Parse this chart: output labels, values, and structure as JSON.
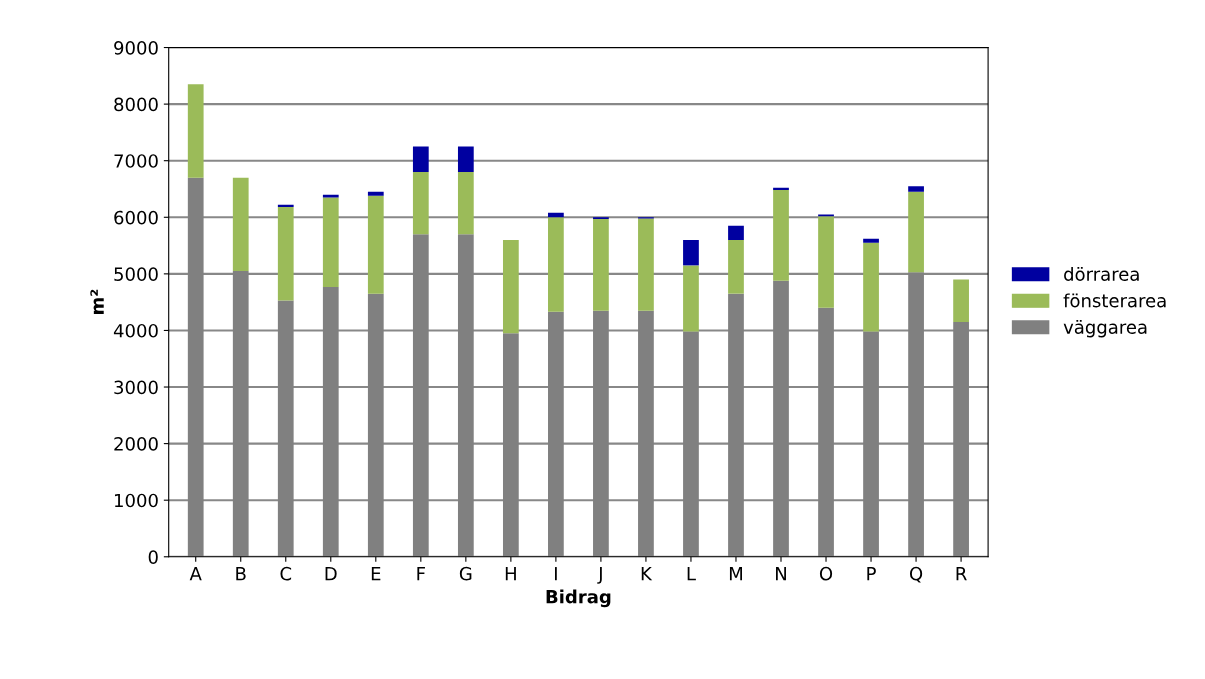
{
  "chart_data": {
    "type": "bar",
    "stacked": true,
    "xlabel": "Bidrag",
    "ylabel": "m²",
    "categories": [
      "A",
      "B",
      "C",
      "D",
      "E",
      "F",
      "G",
      "H",
      "I",
      "J",
      "K",
      "L",
      "M",
      "N",
      "O",
      "P",
      "Q",
      "R"
    ],
    "series": [
      {
        "name": "väggarea",
        "color": "#808080",
        "values": [
          6700,
          5050,
          4530,
          4770,
          4650,
          5700,
          5700,
          3950,
          4330,
          4350,
          4350,
          3980,
          4650,
          4880,
          4400,
          3980,
          5030,
          4150
        ]
      },
      {
        "name": "fönsterarea",
        "color": "#9bbb59",
        "values": [
          1650,
          1650,
          1650,
          1580,
          1730,
          1100,
          1100,
          1650,
          1670,
          1620,
          1630,
          1170,
          950,
          1600,
          1620,
          1570,
          1420,
          750
        ]
      },
      {
        "name": "dörrarea",
        "color": "#0000a0",
        "values": [
          0,
          0,
          40,
          50,
          70,
          450,
          450,
          0,
          80,
          30,
          20,
          450,
          250,
          40,
          30,
          70,
          100,
          0
        ]
      }
    ],
    "ylim": [
      0,
      9000
    ],
    "yticks": [
      0,
      1000,
      2000,
      3000,
      4000,
      5000,
      6000,
      7000,
      8000,
      9000
    ],
    "grid": "y",
    "legend": "right"
  }
}
